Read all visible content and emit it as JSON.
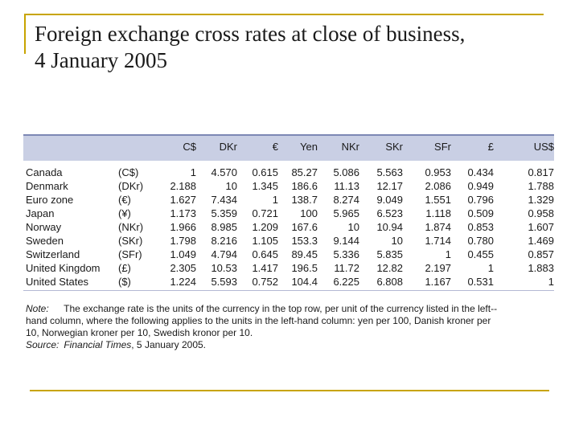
{
  "title": {
    "line1": "Foreign exchange cross rates at close of business,",
    "line2": "4 January 2005"
  },
  "table": {
    "columns": [
      "C$",
      "DKr",
      "€",
      "Yen",
      "NKr",
      "SKr",
      "SFr",
      "£",
      "US$"
    ],
    "rows": [
      {
        "country": "Canada",
        "code": "(C$)",
        "values": [
          "1",
          "4.570",
          "0.615",
          "85.27",
          "5.086",
          "5.563",
          "0.953",
          "0.434",
          "0.817"
        ]
      },
      {
        "country": "Denmark",
        "code": "(DKr)",
        "values": [
          "2.188",
          "10",
          "1.345",
          "186.6",
          "11.13",
          "12.17",
          "2.086",
          "0.949",
          "1.788"
        ]
      },
      {
        "country": "Euro zone",
        "code": "(€)",
        "values": [
          "1.627",
          "7.434",
          "1",
          "138.7",
          "8.274",
          "9.049",
          "1.551",
          "0.796",
          "1.329"
        ]
      },
      {
        "country": "Japan",
        "code": "(¥)",
        "values": [
          "1.173",
          "5.359",
          "0.721",
          "100",
          "5.965",
          "6.523",
          "1.118",
          "0.509",
          "0.958"
        ]
      },
      {
        "country": "Norway",
        "code": "(NKr)",
        "values": [
          "1.966",
          "8.985",
          "1.209",
          "167.6",
          "10",
          "10.94",
          "1.874",
          "0.853",
          "1.607"
        ]
      },
      {
        "country": "Sweden",
        "code": "(SKr)",
        "values": [
          "1.798",
          "8.216",
          "1.105",
          "153.3",
          "9.144",
          "10",
          "1.714",
          "0.780",
          "1.469"
        ]
      },
      {
        "country": "Switzerland",
        "code": "(SFr)",
        "values": [
          "1.049",
          "4.794",
          "0.645",
          "89.45",
          "5.336",
          "5.835",
          "1",
          "0.455",
          "0.857"
        ]
      },
      {
        "country": "United Kingdom",
        "code": "(£)",
        "values": [
          "2.305",
          "10.53",
          "1.417",
          "196.5",
          "11.72",
          "12.82",
          "2.197",
          "1",
          "1.883"
        ]
      },
      {
        "country": "United States",
        "code": "($)",
        "values": [
          "1.224",
          "5.593",
          "0.752",
          "104.4",
          "6.225",
          "6.808",
          "1.167",
          "0.531",
          "1"
        ]
      }
    ]
  },
  "note": {
    "label": "Note:",
    "line1": "The exchange rate is the units of the currency in the top row, per unit of the currency listed in the left--",
    "line2": "hand column, where the following applies to the units in the left-hand column: yen per 100, Danish kroner per",
    "line3": "10, Norwegian kroner per 10, Swedish kronor per 10.",
    "source_label": "Source:",
    "source_pub": "Financial Times",
    "source_date": ", 5 January 2005."
  },
  "colors": {
    "accent": "#c8a400",
    "header_band": "#c9cfe4"
  }
}
